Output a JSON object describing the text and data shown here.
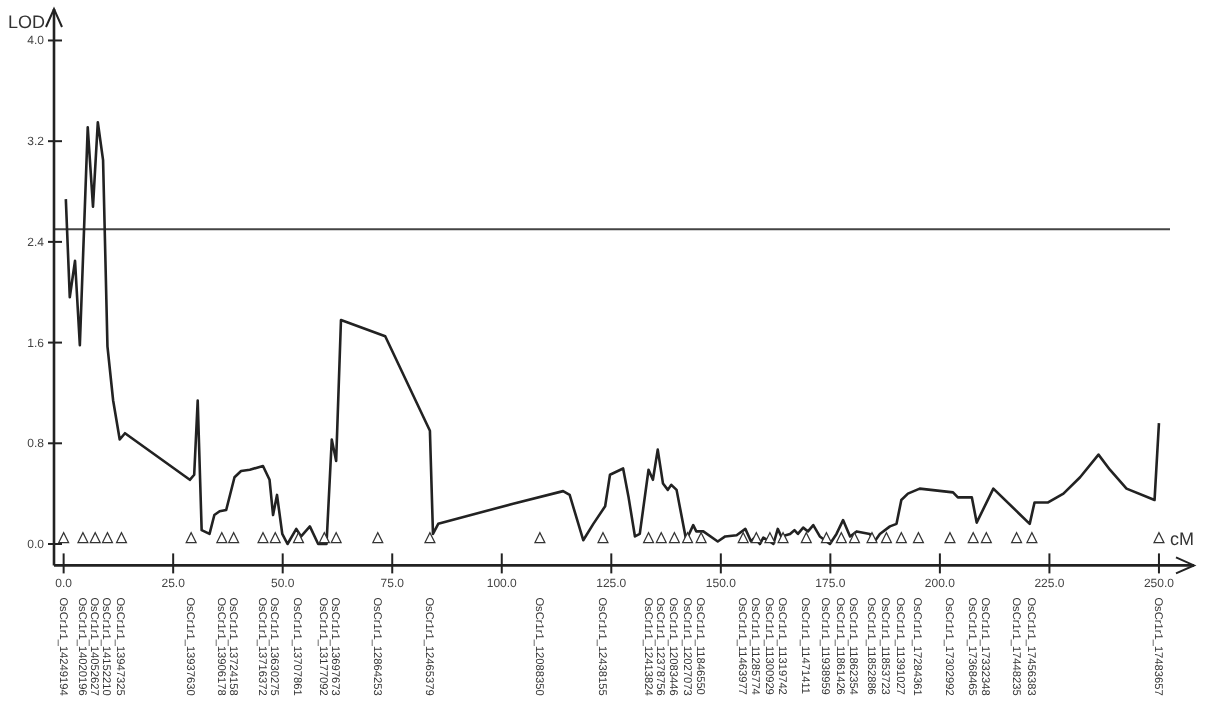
{
  "chart_data": {
    "type": "line",
    "xlabel": "cM",
    "ylabel": "LOD",
    "xlim": [
      -2.2,
      258
    ],
    "ylim": [
      -0.17,
      4.25
    ],
    "xticks": [
      {
        "value": 0,
        "label": "0.0"
      },
      {
        "value": 25,
        "label": "25.0"
      },
      {
        "value": 50,
        "label": "50.0"
      },
      {
        "value": 75,
        "label": "75.0"
      },
      {
        "value": 100,
        "label": "100.0"
      },
      {
        "value": 125,
        "label": "125.0"
      },
      {
        "value": 150,
        "label": "150.0"
      },
      {
        "value": 175,
        "label": "175.0"
      },
      {
        "value": 200,
        "label": "200.0"
      },
      {
        "value": 225,
        "label": "225.0"
      },
      {
        "value": 250,
        "label": "250.0"
      }
    ],
    "yticks": [
      {
        "value": 0,
        "label": "0.0"
      },
      {
        "value": 0.8,
        "label": "0.8"
      },
      {
        "value": 1.6,
        "label": "1.6"
      },
      {
        "value": 2.4,
        "label": "2.4"
      },
      {
        "value": 3.2,
        "label": "3.2"
      },
      {
        "value": 4.0,
        "label": "4.0"
      }
    ],
    "series": [
      {
        "color": "#222222",
        "x": [
          0.5,
          1.4,
          2.6,
          3.7,
          5.5,
          6.7,
          7.8,
          9.0,
          10.0,
          11.3,
          12.8,
          14.0,
          28.8,
          29.8,
          30.6,
          31.5,
          33.3,
          34.4,
          35.6,
          37.1,
          39.0,
          40.5,
          42.5,
          45.5,
          47.0,
          47.8,
          48.7,
          49.9,
          51.1,
          53.1,
          54.2,
          56.2,
          58.1,
          60.0,
          61.2,
          62.2,
          63.3,
          73.4,
          83.6,
          84.3,
          85.5,
          91.9,
          102.6,
          114.0,
          115.5,
          118.6,
          120.9,
          123.6,
          124.7,
          127.7,
          128.9,
          130.4,
          131.5,
          133.5,
          134.5,
          135.6,
          136.8,
          137.9,
          138.7,
          139.9,
          142.1,
          143.7,
          144.4,
          146.0,
          149.3,
          151.0,
          153.6,
          155.6,
          156.9,
          157.7,
          158.9,
          159.7,
          161.2,
          162.0,
          163.0,
          163.8,
          165.8,
          166.8,
          167.6,
          168.8,
          169.9,
          171.1,
          172.6,
          174.9,
          176.4,
          177.9,
          179.5,
          181.0,
          184.0,
          185.1,
          186.3,
          188.6,
          190.1,
          191.2,
          192.7,
          195.4,
          203.0,
          204.1,
          207.3,
          208.4,
          212.2,
          220.5,
          221.6,
          224.7,
          228.2,
          232.0,
          236.2,
          238.8,
          242.6,
          249.0,
          250.0
        ],
        "values": [
          2.74,
          1.96,
          2.25,
          1.58,
          3.31,
          2.68,
          3.35,
          3.05,
          1.57,
          1.14,
          0.83,
          0.88,
          0.51,
          0.55,
          1.14,
          0.11,
          0.08,
          0.23,
          0.26,
          0.27,
          0.53,
          0.58,
          0.59,
          0.62,
          0.51,
          0.23,
          0.39,
          0.08,
          0.0,
          0.12,
          0.06,
          0.14,
          0.0,
          0.0,
          0.83,
          0.66,
          1.78,
          1.65,
          0.9,
          0.08,
          0.16,
          0.22,
          0.32,
          0.42,
          0.39,
          0.03,
          0.16,
          0.3,
          0.55,
          0.6,
          0.38,
          0.06,
          0.08,
          0.59,
          0.51,
          0.75,
          0.48,
          0.43,
          0.47,
          0.43,
          0.03,
          0.15,
          0.1,
          0.1,
          0.02,
          0.06,
          0.07,
          0.12,
          0.02,
          0.05,
          0.0,
          0.05,
          0.02,
          0.0,
          0.12,
          0.06,
          0.08,
          0.11,
          0.08,
          0.13,
          0.1,
          0.15,
          0.06,
          0.0,
          0.08,
          0.19,
          0.06,
          0.1,
          0.08,
          0.02,
          0.08,
          0.14,
          0.16,
          0.35,
          0.4,
          0.44,
          0.41,
          0.37,
          0.37,
          0.17,
          0.44,
          0.16,
          0.33,
          0.33,
          0.4,
          0.53,
          0.71,
          0.59,
          0.44,
          0.35,
          0.96
        ]
      },
      {
        "type": "scatter",
        "marker": "triangle",
        "color": "#333333",
        "x": [
          0,
          4.4,
          7.2,
          10,
          13.2,
          29.1,
          36.1,
          38.8,
          45.5,
          48.3,
          53.6,
          59.5,
          62.2,
          71.7,
          83.6,
          108.7,
          123.1,
          133.5,
          136.4,
          139.4,
          142.4,
          145.5,
          155.1,
          158.1,
          161.2,
          164.2,
          169.5,
          174.1,
          177.5,
          180.5,
          184.5,
          187.8,
          191.2,
          195.1,
          202.3,
          207.6,
          210.6,
          217.5,
          221,
          250
        ],
        "values": [
          0.05,
          0.05,
          0.05,
          0.05,
          0.05,
          0.05,
          0.05,
          0.05,
          0.05,
          0.05,
          0.05,
          0.05,
          0.05,
          0.05,
          0.05,
          0.05,
          0.05,
          0.05,
          0.05,
          0.05,
          0.05,
          0.05,
          0.05,
          0.05,
          0.05,
          0.05,
          0.05,
          0.05,
          0.05,
          0.05,
          0.05,
          0.05,
          0.05,
          0.05,
          0.05,
          0.05,
          0.05,
          0.05,
          0.05,
          0.05
        ]
      }
    ],
    "ref_lines": [
      {
        "axis": "y",
        "value": 2.5,
        "color": "#444444"
      }
    ],
    "annotations": [
      "OsCr1r1_14249194",
      "OsCr1r1_14020196",
      "OsCr1r1_14052627",
      "OsCr1r1_14152210",
      "OsCr1r1_13947325",
      "OsCr1r1_13937630",
      "OsCr1r1_13906178",
      "OsCr1r1_13724158",
      "OsCr1r1_13716372",
      "OsCr1r1_13630275",
      "OsCr1r1_13707861",
      "OsCr1r1_13177092",
      "OsCr1r1_13697673",
      "OsCr1r1_12864253",
      "OsCr1r1_12465379",
      "OsCr1r1_12088350",
      "OsCr1r1_12438155",
      "OsCr1r1_12413824",
      "OsCr1r1_12378756",
      "OsCr1r1_12083446",
      "OsCr1r1_12027073",
      "OsCr1r1_11846550",
      "OsCr1r1_11463977",
      "OsCr1r1_11285774",
      "OsCr1r1_11300929",
      "OsCr1r1_11319742",
      "OsCr1r1_11471411",
      "OsCr1r1_11938959",
      "OsCr1r1_11861426",
      "OsCr1r1_11862354",
      "OsCr1r1_11852886",
      "OsCr1r1_11853723",
      "OsCr1r1_11391027",
      "OsCr1r1_17284361",
      "OsCr1r1_17302992",
      "OsCr1r1_17368465",
      "OsCr1r1_17332348",
      "OsCr1r1_17448235",
      "OsCr1r1_17456383",
      "OsCr1r1_17483657"
    ]
  }
}
